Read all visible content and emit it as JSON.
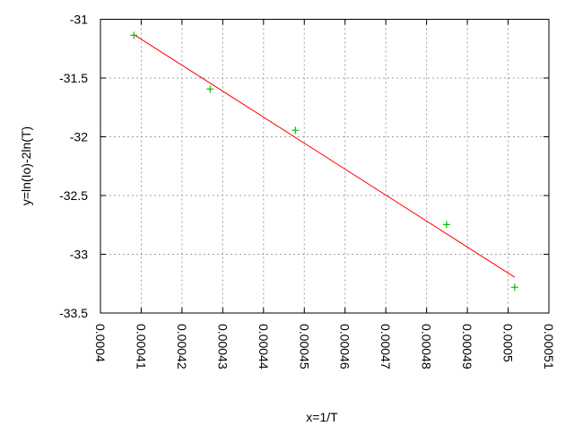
{
  "chart_data": {
    "type": "scatter",
    "title": "",
    "xlabel": "x=1/T",
    "ylabel": "y=ln(Io)-2ln(T)",
    "xlim": [
      0.0004,
      0.00051
    ],
    "ylim": [
      -33.5,
      -31
    ],
    "x_ticks": [
      "0.0004",
      "0.00041",
      "0.00042",
      "0.00043",
      "0.00044",
      "0.00045",
      "0.00046",
      "0.00047",
      "0.00048",
      "0.00049",
      "0.0005",
      "0.00051"
    ],
    "y_ticks": [
      "-31",
      "-31.5",
      "-32",
      "-32.5",
      "-33",
      "-33.5"
    ],
    "grid": true,
    "points": {
      "marker": "plus",
      "color": "#00c000",
      "x": [
        0.0004082,
        0.0004269,
        0.0004478,
        0.0004849,
        0.0005016
      ],
      "y": [
        -31.136,
        -31.594,
        -31.945,
        -32.747,
        -33.281
      ]
    },
    "fit_line": {
      "color": "#ff0000",
      "x": [
        0.0004082,
        0.0005016
      ],
      "y": [
        -31.13,
        -33.195
      ]
    }
  }
}
